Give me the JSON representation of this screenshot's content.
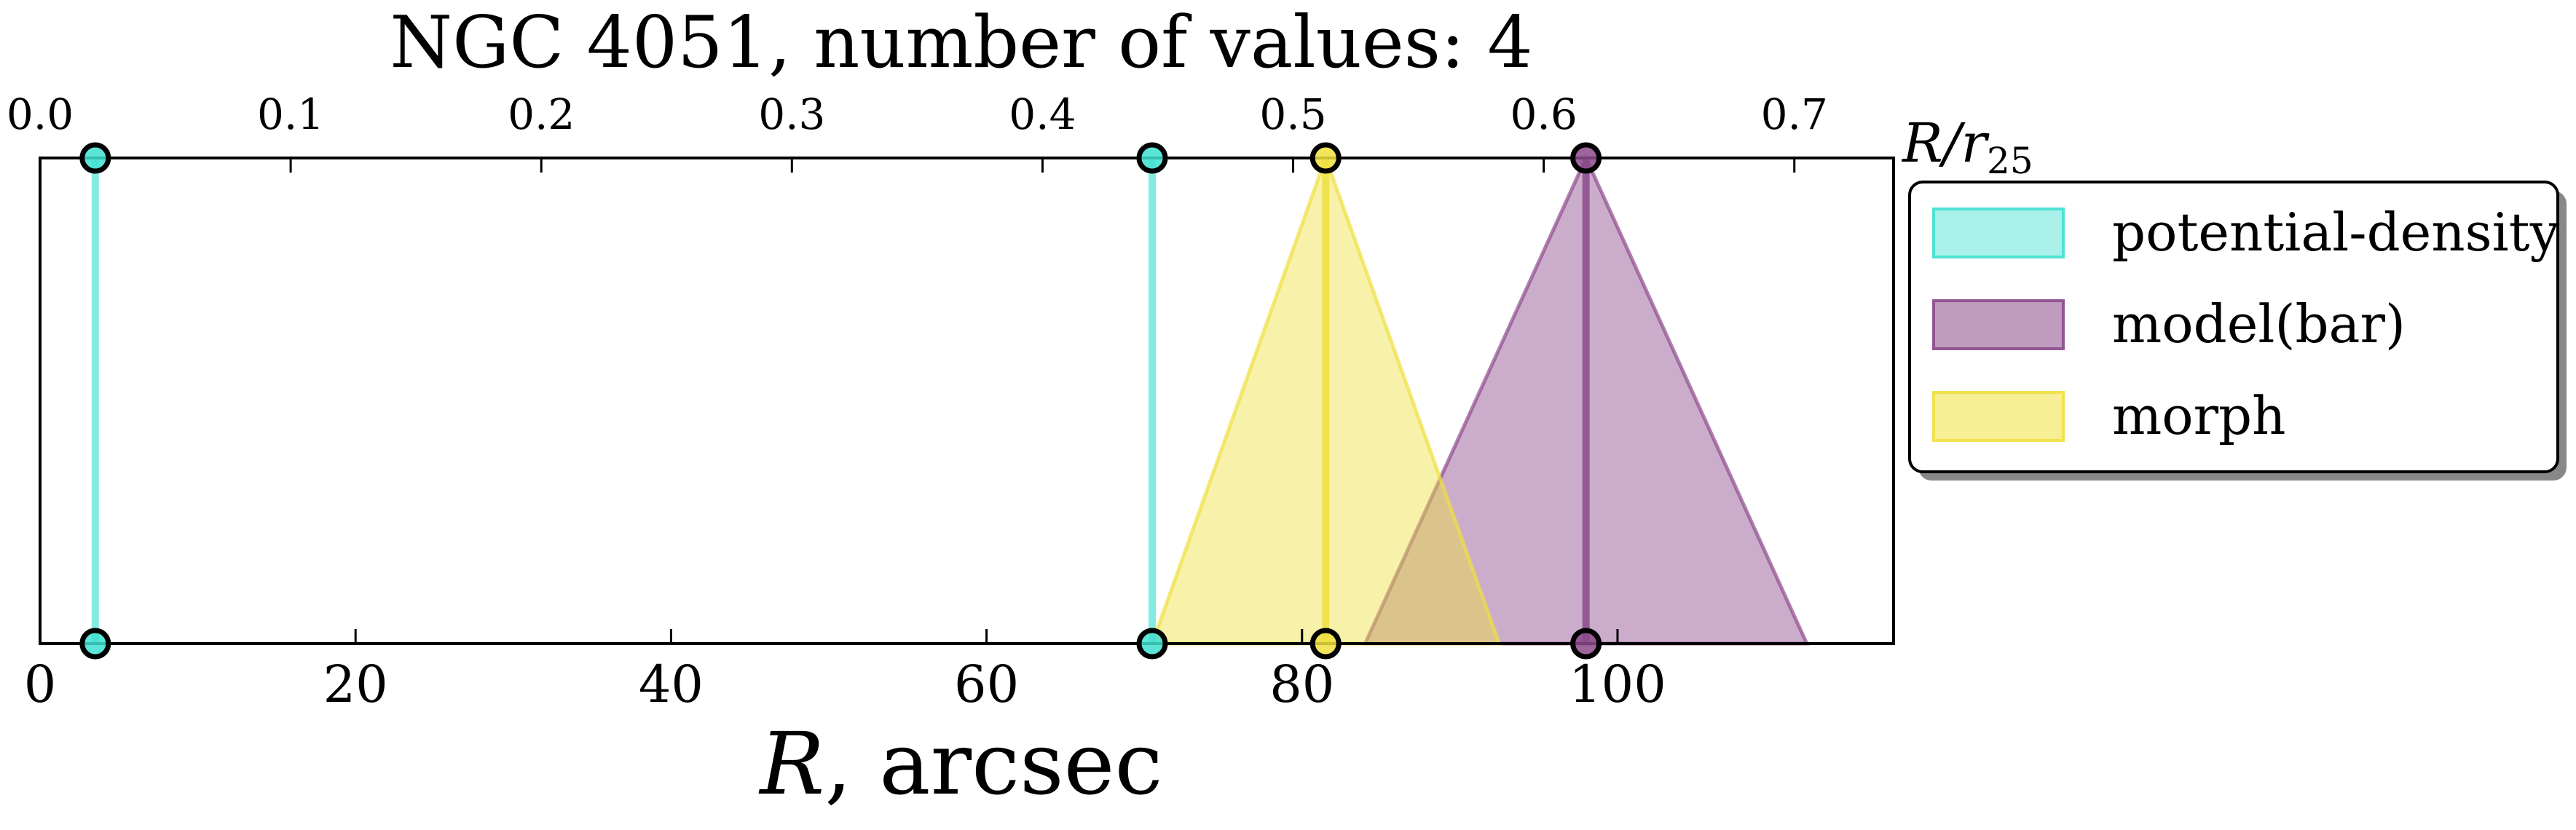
{
  "chart_data": {
    "type": "interval",
    "title": "NGC 4051, number of values: 4",
    "xlabel_main": "R",
    "xlabel_rest": ", arcsec",
    "top_axis_label_main": "R/r",
    "top_axis_label_sub": "25",
    "xlim": [
      0,
      117.5
    ],
    "xticks": [
      0,
      20,
      40,
      60,
      80,
      100
    ],
    "top_xlim": [
      0,
      0.7396
    ],
    "top_xticks": [
      0.0,
      0.1,
      0.2,
      0.3,
      0.4,
      0.5,
      0.6,
      0.7
    ],
    "top_xtick_labels": [
      "0.0",
      "0.1",
      "0.2",
      "0.3",
      "0.4",
      "0.5",
      "0.6",
      "0.7"
    ],
    "grid": false,
    "legend_position": "outside-right",
    "series": [
      {
        "name": "potential-density",
        "color": "#40e0d0",
        "shape": "line",
        "values": [
          3.5,
          70.5
        ]
      },
      {
        "name": "model(bar)",
        "color": "#8b4a8b",
        "shape": "triangle",
        "values": [
          98.0
        ],
        "ranges": [
          [
            84.0,
            112.0
          ]
        ]
      },
      {
        "name": "morph",
        "color": "#f0e040",
        "shape": "triangle",
        "values": [
          81.5
        ],
        "ranges": [
          [
            70.5,
            92.5
          ]
        ]
      }
    ]
  }
}
